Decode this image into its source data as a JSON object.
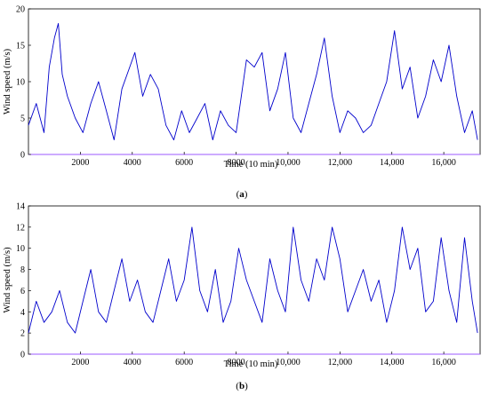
{
  "chart_data": [
    {
      "type": "line",
      "panel_label": "(a)",
      "panel_letter": "a",
      "xlabel": "Time (10 min)",
      "ylabel": "Wind speed (m/s)",
      "xlim": [
        0,
        17400
      ],
      "ylim": [
        0,
        20
      ],
      "xticks": [
        2000,
        4000,
        6000,
        8000,
        10000,
        12000,
        14000,
        16000
      ],
      "xtick_labels": [
        "2000",
        "4000",
        "6000",
        "8000",
        "10,000",
        "12,000",
        "14,000",
        "16,000"
      ],
      "yticks": [
        0,
        5,
        10,
        15,
        20
      ],
      "ytick_labels": [
        "0",
        "5",
        "10",
        "15",
        "20"
      ],
      "grid": false,
      "series": [
        {
          "color": "#0000cc",
          "x": [
            0,
            300,
            600,
            800,
            1000,
            1150,
            1300,
            1500,
            1800,
            2100,
            2400,
            2700,
            3000,
            3300,
            3600,
            3900,
            4100,
            4400,
            4700,
            5000,
            5300,
            5600,
            5900,
            6200,
            6500,
            6800,
            7100,
            7400,
            7700,
            8000,
            8200,
            8400,
            8700,
            9000,
            9300,
            9600,
            9900,
            10200,
            10500,
            10800,
            11100,
            11400,
            11700,
            12000,
            12300,
            12600,
            12900,
            13200,
            13500,
            13800,
            14100,
            14400,
            14700,
            15000,
            15300,
            15600,
            15900,
            16200,
            16500,
            16800,
            17100,
            17300
          ],
          "y": [
            4,
            7,
            3,
            12,
            16,
            18,
            11,
            8,
            5,
            3,
            7,
            10,
            6,
            2,
            9,
            12,
            14,
            8,
            11,
            9,
            4,
            2,
            6,
            3,
            5,
            7,
            2,
            6,
            4,
            3,
            8,
            13,
            12,
            14,
            6,
            9,
            14,
            5,
            3,
            7,
            11,
            16,
            8,
            3,
            6,
            5,
            3,
            4,
            7,
            10,
            17,
            9,
            12,
            5,
            8,
            13,
            10,
            15,
            8,
            3,
            6,
            2
          ]
        }
      ]
    },
    {
      "type": "line",
      "panel_label": "(b)",
      "panel_letter": "b",
      "xlabel": "Time (10 min)",
      "ylabel": "Wind speed (m/s)",
      "xlim": [
        0,
        17400
      ],
      "ylim": [
        0,
        14
      ],
      "xticks": [
        2000,
        4000,
        6000,
        8000,
        10000,
        12000,
        14000,
        16000
      ],
      "xtick_labels": [
        "2000",
        "4000",
        "6000",
        "8000",
        "10,000",
        "12,000",
        "14,000",
        "16,000"
      ],
      "yticks": [
        0,
        2,
        4,
        6,
        8,
        10,
        12,
        14
      ],
      "ytick_labels": [
        "0",
        "2",
        "4",
        "6",
        "8",
        "10",
        "12",
        "14"
      ],
      "grid": false,
      "series": [
        {
          "color": "#0000cc",
          "x": [
            0,
            300,
            600,
            900,
            1200,
            1500,
            1800,
            2100,
            2400,
            2700,
            3000,
            3300,
            3600,
            3900,
            4200,
            4500,
            4800,
            5100,
            5400,
            5700,
            6000,
            6300,
            6600,
            6900,
            7200,
            7500,
            7800,
            8100,
            8400,
            8700,
            9000,
            9300,
            9600,
            9900,
            10200,
            10500,
            10800,
            11100,
            11400,
            11700,
            12000,
            12300,
            12600,
            12900,
            13200,
            13500,
            13800,
            14100,
            14400,
            14700,
            15000,
            15300,
            15600,
            15900,
            16200,
            16500,
            16800,
            17100,
            17300
          ],
          "y": [
            2,
            5,
            3,
            4,
            6,
            3,
            2,
            5,
            8,
            4,
            3,
            6,
            9,
            5,
            7,
            4,
            3,
            6,
            9,
            5,
            7,
            12,
            6,
            4,
            8,
            3,
            5,
            10,
            7,
            5,
            3,
            9,
            6,
            4,
            12,
            7,
            5,
            9,
            7,
            12,
            9,
            4,
            6,
            8,
            5,
            7,
            3,
            6,
            12,
            8,
            10,
            4,
            5,
            11,
            6,
            3,
            11,
            5,
            2
          ]
        }
      ]
    }
  ]
}
